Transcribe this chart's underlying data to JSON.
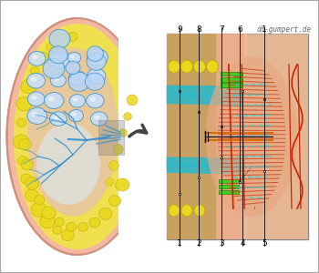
{
  "watermark": "dr-gumpert.de",
  "bg_color": "#e8e8e8",
  "border_color": "#aaaaaa",
  "labels_top": [
    "1",
    "2",
    "3",
    "4",
    "5"
  ],
  "labels_bottom": [
    "9",
    "8",
    "7",
    "6",
    "1"
  ],
  "skin_color": "#f2b8a0",
  "fat_color": "#f0e050",
  "fat_glob_color": "#e8d820",
  "tissue_color": "#d8b888",
  "duct_blue": "#3090d0",
  "duct_cyan": "#20c8d8",
  "nipple_red": "#cc2200",
  "nipple_salmon": "#e88060",
  "nipple_bg": "#f0c0a8",
  "orange_color": "#d87000",
  "green_color": "#44cc22",
  "arrow_color": "#444444",
  "zoom_box_color": "#c8b898",
  "label_color": "#111111"
}
